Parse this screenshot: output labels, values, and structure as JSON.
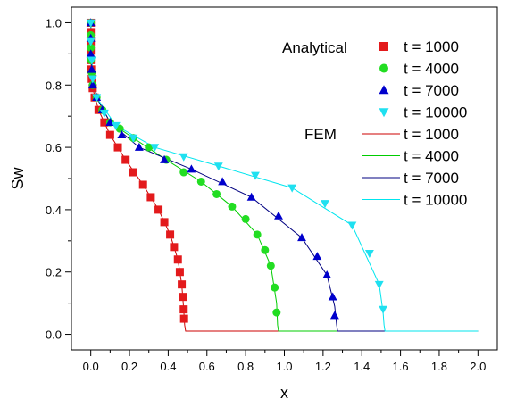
{
  "chart_data": {
    "type": "line",
    "xlabel": "x",
    "ylabel": "Sw",
    "xlim": [
      -0.1,
      2.1
    ],
    "ylim": [
      -0.05,
      1.05
    ],
    "x_ticks": [
      "0.0",
      "0.2",
      "0.4",
      "0.6",
      "0.8",
      "1.0",
      "1.2",
      "1.4",
      "1.6",
      "1.8",
      "2.0"
    ],
    "y_ticks": [
      "0.0",
      "0.2",
      "0.4",
      "0.6",
      "0.8",
      "1.0"
    ],
    "grid": false,
    "legend_position": "top-right",
    "legend_group_labels": {
      "analytical": "Analytical",
      "fem": "FEM"
    },
    "analytical_series": [
      {
        "name": "t = 1000",
        "color": "#e31a1c",
        "marker": "square",
        "x": [
          0.0,
          0.0,
          0.0,
          0.0,
          0.0,
          0.002,
          0.005,
          0.01,
          0.02,
          0.04,
          0.07,
          0.1,
          0.14,
          0.18,
          0.22,
          0.27,
          0.31,
          0.35,
          0.38,
          0.41,
          0.43,
          0.45,
          0.46,
          0.47,
          0.475,
          0.48,
          0.482
        ],
        "y": [
          1.0,
          0.97,
          0.94,
          0.91,
          0.88,
          0.85,
          0.82,
          0.79,
          0.76,
          0.72,
          0.68,
          0.64,
          0.6,
          0.56,
          0.52,
          0.48,
          0.44,
          0.4,
          0.36,
          0.32,
          0.28,
          0.24,
          0.2,
          0.16,
          0.12,
          0.08,
          0.05
        ]
      },
      {
        "name": "t = 4000",
        "color": "#22dd22",
        "marker": "circle",
        "x": [
          0.0,
          0.0,
          0.0,
          0.0,
          0.005,
          0.01,
          0.03,
          0.06,
          0.1,
          0.15,
          0.22,
          0.3,
          0.39,
          0.48,
          0.57,
          0.65,
          0.73,
          0.8,
          0.86,
          0.9,
          0.93,
          0.95,
          0.96
        ],
        "y": [
          1.0,
          0.96,
          0.92,
          0.88,
          0.84,
          0.8,
          0.76,
          0.72,
          0.68,
          0.66,
          0.63,
          0.6,
          0.56,
          0.52,
          0.49,
          0.45,
          0.41,
          0.37,
          0.32,
          0.27,
          0.22,
          0.15,
          0.07
        ]
      },
      {
        "name": "t = 7000",
        "color": "#0000cc",
        "marker": "triangle-up",
        "x": [
          0.0,
          0.0,
          0.0,
          0.005,
          0.01,
          0.03,
          0.06,
          0.1,
          0.16,
          0.25,
          0.38,
          0.52,
          0.68,
          0.83,
          0.97,
          1.09,
          1.17,
          1.22,
          1.25,
          1.26
        ],
        "y": [
          1.0,
          0.95,
          0.9,
          0.85,
          0.8,
          0.76,
          0.72,
          0.68,
          0.64,
          0.6,
          0.56,
          0.53,
          0.49,
          0.44,
          0.38,
          0.31,
          0.25,
          0.19,
          0.12,
          0.06
        ]
      },
      {
        "name": "t = 10000",
        "color": "#1fe0f0",
        "marker": "triangle-down",
        "x": [
          0.0,
          0.0,
          0.005,
          0.01,
          0.03,
          0.07,
          0.13,
          0.22,
          0.33,
          0.48,
          0.66,
          0.85,
          1.04,
          1.21,
          1.35,
          1.44,
          1.49,
          1.51
        ],
        "y": [
          1.0,
          0.94,
          0.88,
          0.82,
          0.76,
          0.71,
          0.67,
          0.63,
          0.6,
          0.57,
          0.54,
          0.51,
          0.47,
          0.42,
          0.35,
          0.26,
          0.16,
          0.08
        ]
      }
    ],
    "fem_series": [
      {
        "name": "t = 1000",
        "color": "#cc0000",
        "x": [
          0.0,
          0.002,
          0.01,
          0.04,
          0.1,
          0.18,
          0.27,
          0.35,
          0.41,
          0.45,
          0.47,
          0.48,
          0.485,
          0.49,
          1.0,
          2.0
        ],
        "y": [
          1.0,
          0.85,
          0.79,
          0.72,
          0.64,
          0.56,
          0.48,
          0.4,
          0.32,
          0.24,
          0.16,
          0.08,
          0.03,
          0.01,
          0.01,
          0.01
        ]
      },
      {
        "name": "t = 4000",
        "color": "#00cc00",
        "x": [
          0.0,
          0.005,
          0.03,
          0.1,
          0.22,
          0.39,
          0.57,
          0.73,
          0.86,
          0.93,
          0.96,
          0.965,
          0.97,
          1.5,
          2.0
        ],
        "y": [
          1.0,
          0.84,
          0.76,
          0.68,
          0.63,
          0.56,
          0.49,
          0.41,
          0.32,
          0.22,
          0.1,
          0.03,
          0.01,
          0.01,
          0.01
        ]
      },
      {
        "name": "t = 7000",
        "color": "#000080",
        "x": [
          0.0,
          0.005,
          0.03,
          0.1,
          0.25,
          0.52,
          0.83,
          1.09,
          1.22,
          1.26,
          1.27,
          1.275,
          1.6,
          2.0
        ],
        "y": [
          1.0,
          0.85,
          0.76,
          0.68,
          0.6,
          0.53,
          0.44,
          0.31,
          0.19,
          0.09,
          0.03,
          0.01,
          0.01,
          0.01
        ]
      },
      {
        "name": "t = 10000",
        "color": "#00e5ee",
        "x": [
          0.0,
          0.005,
          0.03,
          0.13,
          0.33,
          0.66,
          1.04,
          1.35,
          1.49,
          1.51,
          1.515,
          1.52,
          2.0
        ],
        "y": [
          1.0,
          0.88,
          0.76,
          0.67,
          0.6,
          0.54,
          0.47,
          0.35,
          0.16,
          0.07,
          0.03,
          0.01,
          0.01
        ]
      }
    ]
  }
}
